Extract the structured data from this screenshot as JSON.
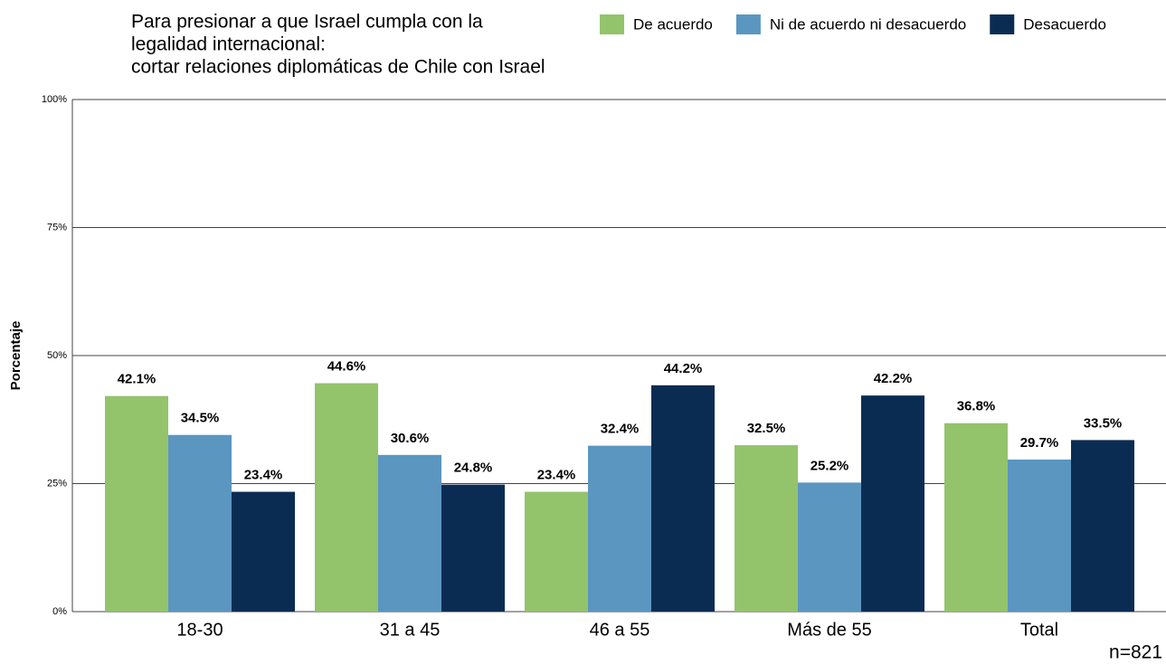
{
  "chart_data": {
    "type": "bar",
    "title": [
      "Para presionar a que Israel cumpla con la",
      "legalidad internacional:",
      "cortar relaciones diplomáticas de Chile con Israel"
    ],
    "y_label": "Porcentaje",
    "caption": "n=821",
    "categories": [
      "18-30",
      "31 a 45",
      "46 a 55",
      "Más de 55",
      "Total"
    ],
    "series": [
      {
        "name": "De acuerdo",
        "color": "#93c36b",
        "values": [
          42.1,
          44.6,
          23.4,
          32.5,
          36.8
        ],
        "value_labels": [
          "42.1%",
          "44.6%",
          "23.4%",
          "32.5%",
          "36.8%"
        ]
      },
      {
        "name": "Ni de acuerdo ni desacuerdo",
        "color": "#5b96c1",
        "values": [
          34.5,
          30.6,
          32.4,
          25.2,
          29.7
        ],
        "value_labels": [
          "34.5%",
          "30.6%",
          "32.4%",
          "25.2%",
          "29.7%"
        ]
      },
      {
        "name": "Desacuerdo",
        "color": "#0b2c52",
        "values": [
          23.4,
          24.8,
          44.2,
          42.2,
          33.5
        ],
        "value_labels": [
          "23.4%",
          "24.8%",
          "44.2%",
          "42.2%",
          "33.5%"
        ]
      }
    ],
    "ylim": [
      0,
      100
    ],
    "yticks": [
      {
        "value": 0,
        "label": "0%"
      },
      {
        "value": 25,
        "label": "25%"
      },
      {
        "value": 50,
        "label": "50%"
      },
      {
        "value": 75,
        "label": "75%"
      },
      {
        "value": 100,
        "label": "100%"
      }
    ],
    "grid": true,
    "legend": "top"
  }
}
